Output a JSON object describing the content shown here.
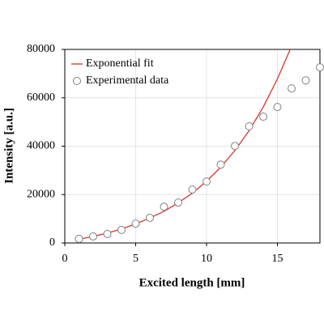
{
  "chart_data": {
    "type": "scatter",
    "xlabel": "Excited length [mm]",
    "ylabel": "Intensity [a.u.]",
    "xlim": [
      0,
      18
    ],
    "ylim": [
      0,
      80000
    ],
    "xticks": [
      0,
      5,
      10,
      15
    ],
    "yticks": [
      0,
      20000,
      40000,
      60000,
      80000
    ],
    "grid": true,
    "legend": "upper-left",
    "series": [
      {
        "name": "Exponential fit",
        "type": "line",
        "color": "#e03030",
        "x": [
          1,
          2,
          3,
          4,
          5,
          6,
          7,
          8,
          9,
          10,
          11,
          12,
          13,
          14,
          15,
          15.9
        ],
        "values": [
          1500,
          2700,
          4100,
          5800,
          7850,
          10300,
          13100,
          16600,
          20600,
          25500,
          31300,
          38200,
          46400,
          56200,
          67800,
          80000
        ]
      },
      {
        "name": "Experimental data",
        "type": "scatter",
        "color": "#808080",
        "x": [
          1,
          2,
          3,
          4,
          5,
          6,
          7,
          8,
          9,
          10,
          11,
          12,
          13,
          14,
          15,
          16,
          17,
          18
        ],
        "values": [
          1700,
          2700,
          3700,
          5400,
          8000,
          10400,
          15000,
          16700,
          22100,
          25400,
          32400,
          40100,
          48200,
          52200,
          56200,
          63900,
          67200,
          72600
        ]
      }
    ]
  }
}
